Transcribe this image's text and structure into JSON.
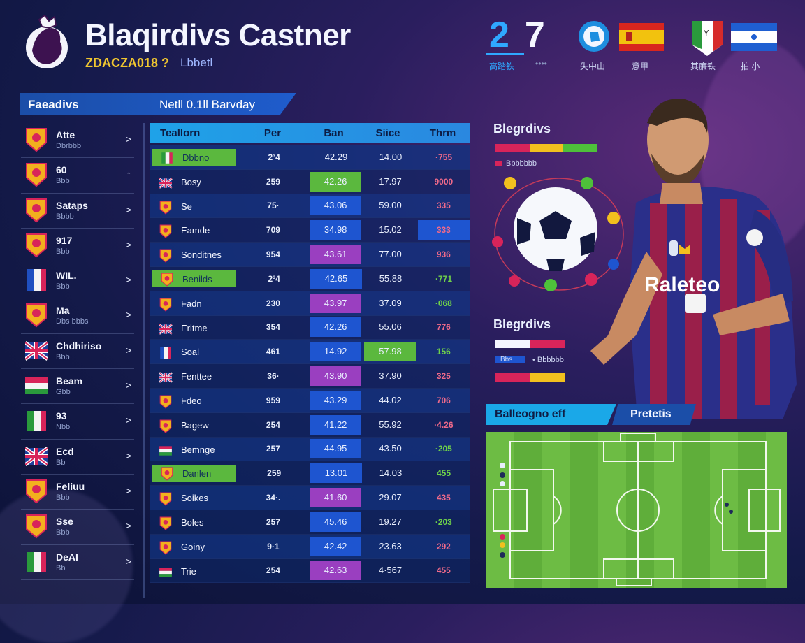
{
  "header": {
    "title": "Blaqirdivs Castner",
    "subtitle": "ZDACZA018 ?",
    "subtitle_extra": "Lbbetl",
    "score_home": "2",
    "score_away": "7",
    "score_caption_home": "高踏铁",
    "score_caption_away": "••••",
    "flag_captions": [
      "失中山",
      "意甲",
      "其廉铁",
      "拍 小"
    ]
  },
  "left_panel": {
    "header_left": "Faeadivs",
    "header_right": "Netll 0.1ll Barvday",
    "teams": [
      {
        "name": "Atte",
        "sub": "Dbrbbb",
        "chevron": ">",
        "icon": "crest-icon"
      },
      {
        "name": "60",
        "sub": "Bbb",
        "chevron": "↑",
        "icon": "crest-icon"
      },
      {
        "name": "Sataps",
        "sub": "Bbbb",
        "chevron": ">",
        "icon": "crest-icon"
      },
      {
        "name": "917",
        "sub": "Bbb",
        "chevron": ">",
        "icon": "crest-icon"
      },
      {
        "name": "WIL.",
        "sub": "Bbb",
        "chevron": ">",
        "icon": "flag-icon"
      },
      {
        "name": "Ma",
        "sub": "Dbs bbbs",
        "chevron": ">",
        "icon": "crest-icon"
      },
      {
        "name": "Chdhiriso",
        "sub": "Bbb",
        "chevron": ">",
        "icon": "flag-icon"
      },
      {
        "name": "Beam",
        "sub": "Gbb",
        "chevron": ">",
        "icon": "flag-icon"
      },
      {
        "name": "93",
        "sub": "Nbb",
        "chevron": ">",
        "icon": "flag-icon"
      },
      {
        "name": "Ecd",
        "sub": "Bb",
        "chevron": ">",
        "icon": "flag-icon"
      },
      {
        "name": "Feliuu",
        "sub": "Bbb",
        "chevron": ">",
        "icon": "crest-icon"
      },
      {
        "name": "Sse",
        "sub": "Bbb",
        "chevron": ">",
        "icon": "crest-icon"
      },
      {
        "name": "DeAI",
        "sub": "Bb",
        "chevron": ">",
        "icon": "flag-icon"
      }
    ]
  },
  "table": {
    "headers": [
      "Teallorn",
      "Per",
      "Ban",
      "Siice",
      "Thrm"
    ],
    "rows": [
      {
        "name": "Dbbno",
        "per": "2³4",
        "ban": "42.29",
        "siice": "14.00",
        "thrm": "·755",
        "flag": "italy",
        "hl_name": true,
        "hl_ban": "none",
        "hl_siice": "none"
      },
      {
        "name": "Bosy",
        "per": "259",
        "ban": "42.26",
        "siice": "17.97",
        "thrm": "9000",
        "flag": "uk",
        "hl_name": false,
        "hl_ban": "green",
        "hl_siice": "none"
      },
      {
        "name": "Se",
        "per": "75·",
        "ban": "43.06",
        "siice": "59.00",
        "thrm": "335",
        "flag": "crest",
        "hl_name": false,
        "hl_ban": "blue",
        "hl_siice": "none"
      },
      {
        "name": "Eamde",
        "per": "709",
        "ban": "34.98",
        "siice": "15.02",
        "thrm": "333",
        "flag": "crest",
        "hl_name": false,
        "hl_ban": "blue",
        "hl_siice": "none",
        "hl_thrm": true
      },
      {
        "name": "Sonditnes",
        "per": "954",
        "ban": "43.61",
        "siice": "77.00",
        "thrm": "936",
        "flag": "crest",
        "hl_name": false,
        "hl_ban": "purple",
        "hl_siice": "none"
      },
      {
        "name": "Benilds",
        "per": "2³4",
        "ban": "42.65",
        "siice": "55.88",
        "thrm": "·771",
        "flag": "crest",
        "hl_name": true,
        "hl_ban": "blue",
        "hl_siice": "none",
        "thrm_green": true
      },
      {
        "name": "Fadn",
        "per": "230",
        "ban": "43.97",
        "siice": "37.09",
        "thrm": "·068",
        "flag": "crest",
        "hl_name": false,
        "hl_ban": "purple",
        "hl_siice": "none",
        "thrm_green": true
      },
      {
        "name": "Eritme",
        "per": "354",
        "ban": "42.26",
        "siice": "55.06",
        "thrm": "776",
        "flag": "uk",
        "hl_name": false,
        "hl_ban": "blue",
        "hl_siice": "none"
      },
      {
        "name": "Soal",
        "per": "461",
        "ban": "14.92",
        "siice": "57.98",
        "thrm": "156",
        "flag": "france",
        "hl_name": false,
        "hl_ban": "blue",
        "hl_siice": "green",
        "thrm_green": true
      },
      {
        "name": "Fenttee",
        "per": "36·",
        "ban": "43.90",
        "siice": "37.90",
        "thrm": "325",
        "flag": "uk",
        "hl_name": false,
        "hl_ban": "purple",
        "hl_siice": "none"
      },
      {
        "name": "Fdeo",
        "per": "959",
        "ban": "43.29",
        "siice": "44.02",
        "thrm": "706",
        "flag": "crest",
        "hl_name": false,
        "hl_ban": "blue",
        "hl_siice": "none"
      },
      {
        "name": "Bagew",
        "per": "254",
        "ban": "41.22",
        "siice": "55.92",
        "thrm": "·4.26",
        "flag": "crest",
        "hl_name": false,
        "hl_ban": "blue",
        "hl_siice": "none"
      },
      {
        "name": "Bemnge",
        "per": "257",
        "ban": "44.95",
        "siice": "43.50",
        "thrm": "·205",
        "flag": "flag",
        "hl_name": false,
        "hl_ban": "blue",
        "hl_siice": "none",
        "thrm_green": true
      },
      {
        "name": "Danlen",
        "per": "259",
        "ban": "13.01",
        "siice": "14.03",
        "thrm": "455",
        "flag": "crest",
        "hl_name": true,
        "hl_ban": "blue",
        "hl_siice": "none",
        "thrm_green": true
      },
      {
        "name": "Soikes",
        "per": "34·.",
        "ban": "41.60",
        "siice": "29.07",
        "thrm": "435",
        "flag": "crest",
        "hl_name": false,
        "hl_ban": "purple",
        "hl_siice": "none"
      },
      {
        "name": "Boles",
        "per": "257",
        "ban": "45.46",
        "siice": "19.27",
        "thrm": "·203",
        "flag": "crest",
        "hl_name": false,
        "hl_ban": "blue",
        "hl_siice": "none",
        "thrm_green": true
      },
      {
        "name": "Goiny",
        "per": "9·1",
        "ban": "42.42",
        "siice": "23.63",
        "thrm": "292",
        "flag": "crest",
        "hl_name": false,
        "hl_ban": "blue",
        "hl_siice": "none"
      },
      {
        "name": "Trie",
        "per": "254",
        "ban": "42.63",
        "siice": "4·567",
        "thrm": "455",
        "flag": "flag",
        "hl_name": false,
        "hl_ban": "purple",
        "hl_siice": "none"
      }
    ]
  },
  "side": {
    "section1_title": "Blegrdivs",
    "section1_caption": "Bbbbbbb",
    "section2_title": "Blegrdivs",
    "section2_caption_a": "Bbs",
    "section2_caption_b": "• Bbbbbb",
    "sponsor": "Raleteo"
  },
  "pitch": {
    "tab_a": "Balleogno eff",
    "tab_b": "Pretetis"
  },
  "colors": {
    "accent": "#1aa8e8",
    "highlight_green": "#5bb83e",
    "highlight_blue": "#1e55d0",
    "highlight_purple": "#9a3fc0",
    "pitch_green": "#5fae3a"
  }
}
